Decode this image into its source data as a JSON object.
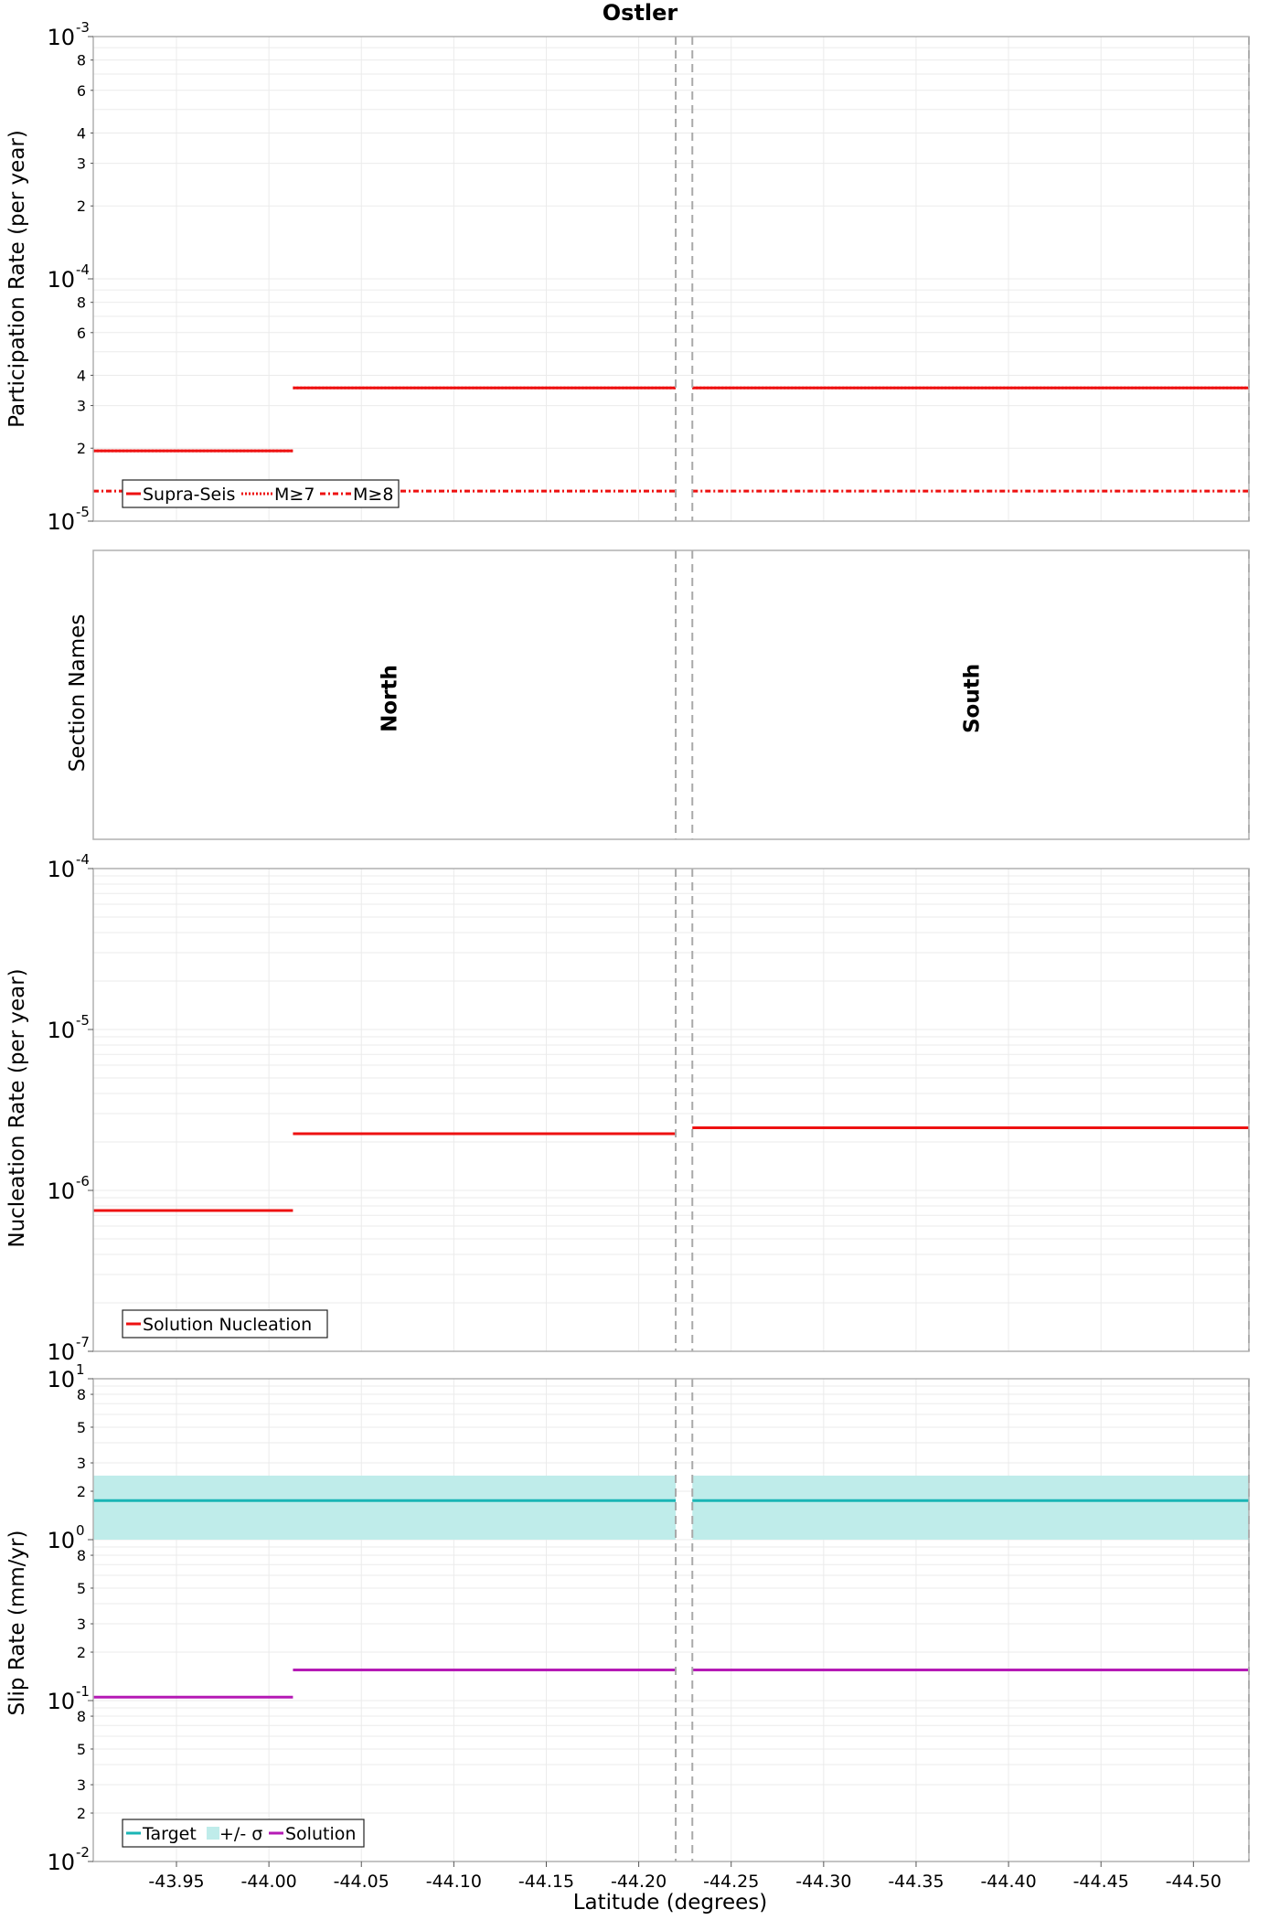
{
  "chart_data": [
    {
      "type": "line",
      "title": "Ostler",
      "xlabel": "",
      "ylabel": "Participation Rate (per year)",
      "yscale": "log",
      "ylim": [
        1e-05,
        0.001
      ],
      "xlim": [
        -43.905,
        -44.53
      ],
      "grid": true,
      "legend": {
        "position": "bottom-left",
        "entries": [
          "Supra-Seis",
          "M≥7",
          "M≥8"
        ]
      },
      "y_tick_labels": [
        {
          "value": 0.001,
          "major": "10",
          "exp": "-3"
        },
        {
          "value": 0.0008,
          "minor": "8"
        },
        {
          "value": 0.0006,
          "minor": "6"
        },
        {
          "value": 0.0004,
          "minor": "4"
        },
        {
          "value": 0.0003,
          "minor": "3"
        },
        {
          "value": 0.0002,
          "minor": "2"
        },
        {
          "value": 0.0001,
          "major": "10",
          "exp": "-4"
        },
        {
          "value": 8e-05,
          "minor": "8"
        },
        {
          "value": 6e-05,
          "minor": "6"
        },
        {
          "value": 4e-05,
          "minor": "4"
        },
        {
          "value": 3e-05,
          "minor": "3"
        },
        {
          "value": 2e-05,
          "minor": "2"
        },
        {
          "value": 1e-05,
          "major": "10",
          "exp": "-5"
        }
      ],
      "series": [
        {
          "name": "Supra-Seis",
          "color": "#ee1111",
          "style": "solid",
          "segments": [
            {
              "x": [
                -43.905,
                -44.013
              ],
              "y": 1.95e-05
            },
            {
              "x": [
                -44.013,
                -44.22
              ],
              "y": 3.55e-05
            },
            {
              "x": [
                -44.229,
                -44.53
              ],
              "y": 3.55e-05
            }
          ]
        },
        {
          "name": "M≥7",
          "color": "#ee1111",
          "style": "dotted",
          "segments": [
            {
              "x": [
                -43.905,
                -44.013
              ],
              "y": 1.95e-05
            },
            {
              "x": [
                -44.013,
                -44.22
              ],
              "y": 3.55e-05
            },
            {
              "x": [
                -44.229,
                -44.53
              ],
              "y": 3.55e-05
            }
          ]
        },
        {
          "name": "M≥8",
          "color": "#ee1111",
          "style": "dashdot",
          "segments": [
            {
              "x": [
                -43.905,
                -44.22
              ],
              "y": 1.33e-05
            },
            {
              "x": [
                -44.229,
                -44.53
              ],
              "y": 1.33e-05
            }
          ]
        }
      ]
    },
    {
      "type": "table",
      "title": "",
      "ylabel": "Section Names",
      "sections": [
        {
          "name": "North",
          "x_center": -44.065
        },
        {
          "name": "South",
          "x_center": -44.38
        }
      ]
    },
    {
      "type": "line",
      "title": "",
      "ylabel": "Nucleation Rate (per year)",
      "yscale": "log",
      "ylim": [
        1e-07,
        0.0001
      ],
      "grid": true,
      "legend": {
        "position": "bottom-left",
        "entries": [
          "Solution Nucleation"
        ]
      },
      "y_tick_labels": [
        {
          "value": 0.0001,
          "major": "10",
          "exp": "-4"
        },
        {
          "value": 1e-05,
          "major": "10",
          "exp": "-5"
        },
        {
          "value": 1e-06,
          "major": "10",
          "exp": "-6"
        },
        {
          "value": 1e-07,
          "major": "10",
          "exp": "-7"
        }
      ],
      "series": [
        {
          "name": "Solution Nucleation",
          "color": "#ee1111",
          "style": "solid",
          "segments": [
            {
              "x": [
                -43.905,
                -44.013
              ],
              "y": 7.5e-07
            },
            {
              "x": [
                -44.013,
                -44.22
              ],
              "y": 2.25e-06
            },
            {
              "x": [
                -44.229,
                -44.53
              ],
              "y": 2.45e-06
            }
          ]
        }
      ]
    },
    {
      "type": "line",
      "title": "",
      "xlabel": "Latitude (degrees)",
      "ylabel": "Slip Rate (mm/yr)",
      "yscale": "log",
      "ylim": [
        0.01,
        10
      ],
      "grid": true,
      "legend": {
        "position": "bottom-left",
        "entries": [
          "Target",
          "+/- σ",
          "Solution"
        ]
      },
      "x_ticks": [
        -43.95,
        -44.0,
        -44.05,
        -44.1,
        -44.15,
        -44.2,
        -44.25,
        -44.3,
        -44.35,
        -44.4,
        -44.45,
        -44.5
      ],
      "x_tick_labels": [
        "-43.95",
        "-44.00",
        "-44.05",
        "-44.10",
        "-44.15",
        "-44.20",
        "-44.25",
        "-44.30",
        "-44.35",
        "-44.40",
        "-44.45",
        "-44.50"
      ],
      "y_tick_labels": [
        {
          "value": 10,
          "major": "10",
          "exp": "1"
        },
        {
          "value": 8,
          "minor": "8"
        },
        {
          "value": 5,
          "minor": "5"
        },
        {
          "value": 3,
          "minor": "3"
        },
        {
          "value": 2,
          "minor": "2"
        },
        {
          "value": 1,
          "major": "10",
          "exp": "0"
        },
        {
          "value": 0.8,
          "minor": "8"
        },
        {
          "value": 0.5,
          "minor": "5"
        },
        {
          "value": 0.3,
          "minor": "3"
        },
        {
          "value": 0.2,
          "minor": "2"
        },
        {
          "value": 0.1,
          "major": "10",
          "exp": "-1"
        },
        {
          "value": 0.08,
          "minor": "8"
        },
        {
          "value": 0.05,
          "minor": "5"
        },
        {
          "value": 0.03,
          "minor": "3"
        },
        {
          "value": 0.02,
          "minor": "2"
        },
        {
          "value": 0.01,
          "major": "10",
          "exp": "-2"
        }
      ],
      "bands": [
        {
          "name": "+/- σ",
          "color": "#bfecea",
          "segments": [
            {
              "x": [
                -43.905,
                -44.22
              ],
              "y": [
                1.0,
                2.5
              ]
            },
            {
              "x": [
                -44.229,
                -44.53
              ],
              "y": [
                1.0,
                2.5
              ]
            }
          ]
        }
      ],
      "series": [
        {
          "name": "Target",
          "color": "#1ab5b5",
          "style": "solid",
          "segments": [
            {
              "x": [
                -43.905,
                -44.22
              ],
              "y": 1.75
            },
            {
              "x": [
                -44.229,
                -44.53
              ],
              "y": 1.75
            }
          ]
        },
        {
          "name": "Solution",
          "color": "#b51ab5",
          "style": "solid",
          "segments": [
            {
              "x": [
                -43.905,
                -44.013
              ],
              "y": 0.105
            },
            {
              "x": [
                -44.013,
                -44.22
              ],
              "y": 0.155
            },
            {
              "x": [
                -44.229,
                -44.53
              ],
              "y": 0.155
            }
          ]
        }
      ]
    }
  ],
  "section_boundaries": [
    -44.22,
    -44.229,
    -44.53
  ],
  "colors": {
    "grid": "#ebebeb",
    "frame": "#b0b0b0",
    "boundary": "#a9a9a9"
  }
}
